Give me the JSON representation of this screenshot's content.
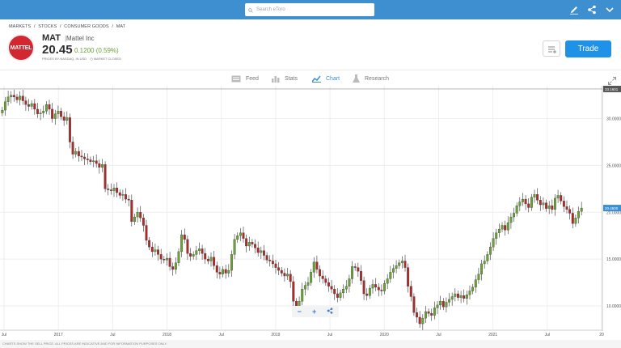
{
  "header": {
    "search_placeholder": "Search eToro"
  },
  "breadcrumb": [
    "MARKETS",
    "/",
    "STOCKS",
    "/",
    "CONSUMER GOODS",
    "/",
    "MAT"
  ],
  "instrument": {
    "logo_text": "MATTEL",
    "ticker": "MAT",
    "separator": "|",
    "name": "Mattel Inc",
    "price": "20.45",
    "change": "0.1200 (0.59%)",
    "meta": "PRICES BY NASDAQ, IN USD",
    "market_status": "MARKET CLOSED"
  },
  "actions": {
    "trade_label": "Trade"
  },
  "tabs": [
    {
      "label": "Feed",
      "active": false
    },
    {
      "label": "Stats",
      "active": false
    },
    {
      "label": "Chart",
      "active": true
    },
    {
      "label": "Research",
      "active": false
    }
  ],
  "zoom": {
    "minus": "−",
    "plus": "+"
  },
  "footer": "CHARTS SHOW THE SELL PRICE. ALL PRICES ARE INDICATIVE AND FOR INFORMATION PURPOSES ONLY.",
  "colors": {
    "up": "#6aa335",
    "down": "#b02a2a",
    "accent": "#1f91e6",
    "topbar": "#3d8fd0"
  },
  "chart_data": {
    "type": "candlestick",
    "x_ticks": [
      "Jul",
      "2017",
      "Jul",
      "2018",
      "Jul",
      "2019",
      "Jul",
      "2020",
      "Jul",
      "2021",
      "Jul",
      "20"
    ],
    "y_ticks": [
      "30.0000",
      "25.0000",
      "20.0000",
      "15.0000",
      "10.0000"
    ],
    "ylim": [
      7.5,
      33.5
    ],
    "last_price_label": "20.4500",
    "reference_line_label": "33.1601",
    "grid": true,
    "closes": [
      30.9,
      31.8,
      32.3,
      32.5,
      32.3,
      32.0,
      32.4,
      31.9,
      31.5,
      31.3,
      31.6,
      31.0,
      30.5,
      30.6,
      30.8,
      31.5,
      31.0,
      30.0,
      30.5,
      30.8,
      30.2,
      29.8,
      30.1,
      27.5,
      26.2,
      26.5,
      26.0,
      25.9,
      25.7,
      25.6,
      25.4,
      25.5,
      25.2,
      24.8,
      25.1,
      22.5,
      22.4,
      22.3,
      22.6,
      22.1,
      21.8,
      21.9,
      21.4,
      21.3,
      19.0,
      19.5,
      20.0,
      19.4,
      18.6,
      17.0,
      16.3,
      15.8,
      16.0,
      15.5,
      15.0,
      14.9,
      15.1,
      14.2,
      13.9,
      14.6,
      15.8,
      17.6,
      17.1,
      15.6,
      15.3,
      15.5,
      15.9,
      16.1,
      15.6,
      15.0,
      14.8,
      15.2,
      14.3,
      13.6,
      13.4,
      13.9,
      13.5,
      13.8,
      15.5,
      17.1,
      17.5,
      17.8,
      17.2,
      16.4,
      16.8,
      16.6,
      16.2,
      15.7,
      15.9,
      15.4,
      14.9,
      14.8,
      14.5,
      14.1,
      13.8,
      13.5,
      13.2,
      13.4,
      12.6,
      10.5,
      9.7,
      10.5,
      11.8,
      12.2,
      12.5,
      13.6,
      14.7,
      13.9,
      13.2,
      12.9,
      12.5,
      12.1,
      11.8,
      11.3,
      10.9,
      11.4,
      11.8,
      12.1,
      12.9,
      14.2,
      14.1,
      13.7,
      12.7,
      11.3,
      11.1,
      11.9,
      12.3,
      12.0,
      11.7,
      11.6,
      12.4,
      12.9,
      13.6,
      14.0,
      14.3,
      14.6,
      14.8,
      14.1,
      12.1,
      11.0,
      9.3,
      8.8,
      8.1,
      8.7,
      9.4,
      9.2,
      9.0,
      9.8,
      10.1,
      10.5,
      9.9,
      10.4,
      10.7,
      11.0,
      11.3,
      10.9,
      11.1,
      10.8,
      11.2,
      11.6,
      12.0,
      12.8,
      13.4,
      14.5,
      14.8,
      15.5,
      16.3,
      17.2,
      17.8,
      18.2,
      18.6,
      18.1,
      18.9,
      19.5,
      19.9,
      20.7,
      21.1,
      21.4,
      20.9,
      20.5,
      21.6,
      21.9,
      21.3,
      20.8,
      21.0,
      20.4,
      20.7,
      20.3,
      21.5,
      21.8,
      21.2,
      20.6,
      20.3,
      19.9,
      18.8,
      19.4,
      20.1,
      20.45
    ]
  }
}
